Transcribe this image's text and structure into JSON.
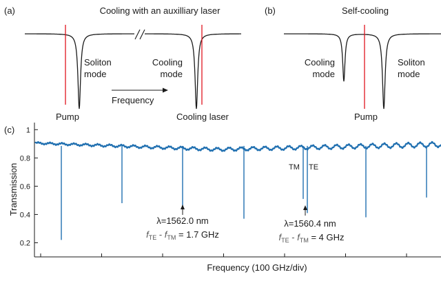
{
  "colors": {
    "pump_line": "#e0141e",
    "trace": "#1f6fb0",
    "ink": "#1a1a1a"
  },
  "panel_a": {
    "tag": "(a)",
    "title": "Cooling with an auxilliary laser",
    "soliton_label": [
      "Soliton",
      "mode"
    ],
    "cooling_label": [
      "Cooling",
      "mode"
    ],
    "frequency_label": "Frequency",
    "pump_label": "Pump",
    "cooling_laser_label": "Cooling laser"
  },
  "panel_b": {
    "tag": "(b)",
    "title": "Self-cooling",
    "cooling_label": [
      "Cooling",
      "mode"
    ],
    "soliton_label": [
      "Soliton",
      "mode"
    ],
    "pump_label": "Pump"
  },
  "panel_c": {
    "tag": "(c)",
    "chart_data": {
      "type": "line",
      "xlabel": "Frequency (100 GHz/div)",
      "ylabel": "Transmission",
      "ylim": [
        0.1,
        1.05
      ],
      "yticks": [
        0.2,
        0.4,
        0.6,
        0.8,
        1
      ],
      "ytick_labels": [
        "0.2",
        "0.4",
        "0.6",
        "0.8",
        "1"
      ],
      "x_divisions": 7,
      "grid": false,
      "baseline": {
        "start": 0.905,
        "mid": 0.86,
        "end": 0.895,
        "ripple": 0.013
      },
      "dips": [
        {
          "x": 0.39,
          "depth": 0.22
        },
        {
          "x": 1.41,
          "depth": 0.48
        },
        {
          "x": 2.42,
          "depth": 0.45
        },
        {
          "x": 3.44,
          "depth": 0.37
        },
        {
          "x": 4.46,
          "depth": 0.51
        },
        {
          "x": 4.53,
          "depth": 0.41
        },
        {
          "x": 5.47,
          "depth": 0.38
        },
        {
          "x": 6.49,
          "depth": 0.52
        }
      ],
      "mode_labels": {
        "tm": "TM",
        "te": "TE"
      },
      "annotations": [
        {
          "lambda": "λ=1562.0 nm",
          "f_te": "f",
          "te_sub": "TE",
          "minus": " - ",
          "f_tm": "f",
          "tm_sub": "TM",
          "value": " = 1.7 GHz"
        },
        {
          "lambda": "λ=1560.4 nm",
          "f_te": "f",
          "te_sub": "TE",
          "minus": " - ",
          "f_tm": "f",
          "tm_sub": "TM",
          "value": " = 4 GHz"
        }
      ]
    }
  }
}
